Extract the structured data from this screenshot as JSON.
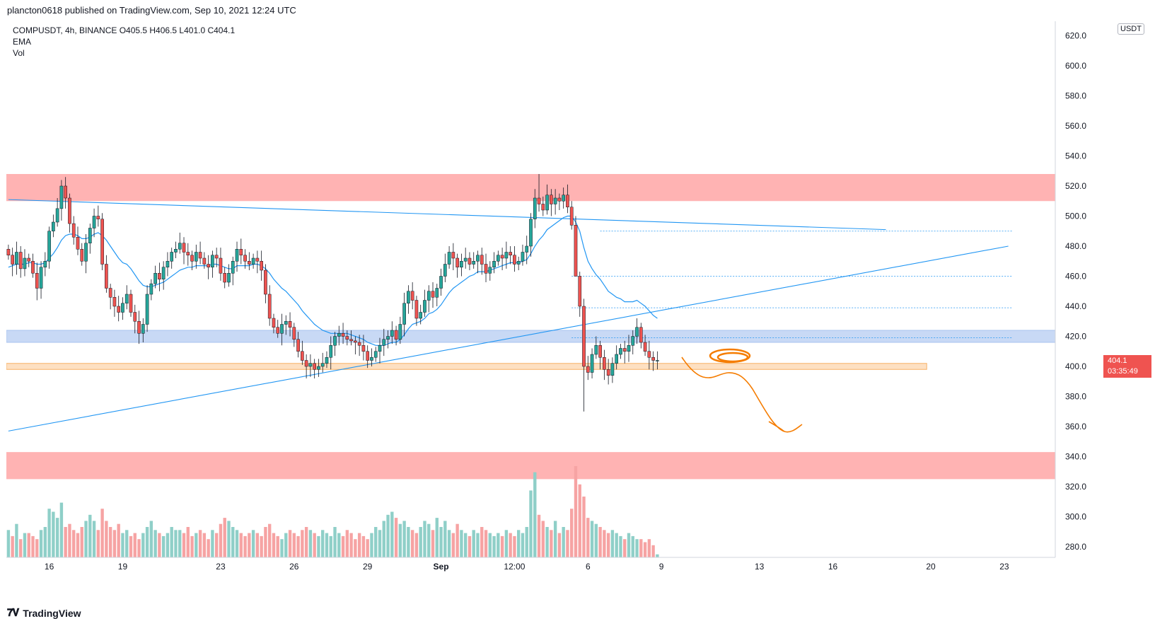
{
  "header": {
    "published": "plancton0618 published on TradingView.com, Sep 10, 2021 12:24 UTC"
  },
  "legend": {
    "symbol_line": "COMPUSDT, 4h, BINANCE  O405.5  H406.5  L401.0  C404.1",
    "ema": "EMA",
    "vol": "Vol"
  },
  "price_axis": {
    "currency": "USDT",
    "current_price": "404.1",
    "countdown": "03:35:49",
    "ticks": [
      "620.0",
      "600.0",
      "580.0",
      "560.0",
      "540.0",
      "520.0",
      "500.0",
      "480.0",
      "460.0",
      "440.0",
      "420.0",
      "400.0",
      "380.0",
      "360.0",
      "340.0",
      "320.0",
      "300.0",
      "280.0"
    ]
  },
  "footer": {
    "brand": "TradingView",
    "logo_icon": "tradingview-logo-icon"
  },
  "colors": {
    "up": "#26a69a",
    "down": "#ef5350",
    "ema": "#2196f3",
    "red_zone": "#ffb3b3",
    "blue_zone": "#c8d9f5",
    "orange_zone": "#fde0c2",
    "drawing_orange": "#f57c00",
    "trendline": "#2196f3",
    "vol_up": "#8fcfc8",
    "vol_down": "#f6a3a3"
  },
  "chart_data": {
    "type": "candlestick",
    "symbol": "COMPUSDT",
    "interval": "4h",
    "exchange": "BINANCE",
    "ylim": [
      266,
      630
    ],
    "x_ticks": [
      {
        "label": "16",
        "i": 10
      },
      {
        "label": "19",
        "i": 28
      },
      {
        "label": "23",
        "i": 52
      },
      {
        "label": "26",
        "i": 70
      },
      {
        "label": "29",
        "i": 88
      },
      {
        "label": "Sep",
        "i": 106
      },
      {
        "label": "12:00",
        "i": 124
      },
      {
        "label": "6",
        "i": 142
      },
      {
        "label": "9",
        "i": 160
      },
      {
        "label": "13",
        "i": 184
      },
      {
        "label": "16",
        "i": 202
      },
      {
        "label": "20",
        "i": 226
      },
      {
        "label": "23",
        "i": 244
      }
    ],
    "total_slots": 257,
    "zones": [
      {
        "name": "resistance-zone-top",
        "from": 510,
        "to": 528,
        "color": "red"
      },
      {
        "name": "support-zone-blue",
        "from": 416,
        "to": 424,
        "color": "blue"
      },
      {
        "name": "support-zone-orange",
        "from": 398,
        "to": 402,
        "color": "orange",
        "end_i": 225
      },
      {
        "name": "target-zone-bottom",
        "from": 325,
        "to": 343,
        "color": "red"
      }
    ],
    "trendlines": [
      {
        "name": "descending-trendline",
        "p1": {
          "i": 0,
          "v": 511
        },
        "p2": {
          "i": 215,
          "v": 491
        }
      },
      {
        "name": "ascending-trendline",
        "p1": {
          "i": 0,
          "v": 357
        },
        "p2": {
          "i": 245,
          "v": 480
        }
      }
    ],
    "dotted_levels": [
      {
        "v": 490,
        "from_i": 145,
        "to_i": 246
      },
      {
        "v": 460,
        "from_i": 138,
        "to_i": 246
      },
      {
        "v": 439,
        "from_i": 138,
        "to_i": 246
      },
      {
        "v": 419,
        "from_i": 138,
        "to_i": 246
      }
    ],
    "closes": [
      474,
      468,
      476,
      465,
      472,
      470,
      462,
      452,
      466,
      470,
      490,
      496,
      505,
      520,
      512,
      495,
      486,
      478,
      470,
      482,
      492,
      500,
      498,
      468,
      452,
      446,
      440,
      436,
      442,
      448,
      436,
      430,
      422,
      428,
      448,
      455,
      462,
      458,
      466,
      470,
      476,
      478,
      482,
      476,
      474,
      470,
      476,
      472,
      468,
      466,
      474,
      472,
      462,
      456,
      462,
      470,
      478,
      474,
      470,
      468,
      472,
      470,
      464,
      448,
      432,
      426,
      422,
      428,
      430,
      426,
      418,
      410,
      404,
      400,
      402,
      398,
      400,
      402,
      406,
      414,
      420,
      422,
      420,
      418,
      417,
      416,
      414,
      410,
      404,
      406,
      410,
      414,
      418,
      420,
      424,
      418,
      428,
      442,
      450,
      444,
      432,
      436,
      444,
      450,
      446,
      452,
      460,
      468,
      476,
      472,
      466,
      470,
      472,
      468,
      470,
      474,
      468,
      462,
      466,
      470,
      474,
      472,
      476,
      474,
      468,
      470,
      476,
      480,
      498,
      512,
      508,
      504,
      514,
      508,
      512,
      510,
      514,
      506,
      494,
      460,
      440,
      400,
      396,
      408,
      414,
      406,
      398,
      394,
      402,
      408,
      412,
      410,
      414,
      420,
      426,
      416,
      410,
      406,
      404,
      404
    ],
    "volumes": [
      9,
      7,
      11,
      6,
      8,
      8,
      7,
      6,
      9,
      10,
      16,
      15,
      13,
      18,
      10,
      11,
      9,
      8,
      10,
      12,
      14,
      12,
      9,
      16,
      12,
      10,
      9,
      11,
      8,
      9,
      7,
      8,
      6,
      8,
      10,
      12,
      9,
      8,
      7,
      8,
      10,
      9,
      9,
      8,
      10,
      7,
      8,
      9,
      8,
      6,
      9,
      8,
      11,
      13,
      12,
      10,
      9,
      8,
      7,
      8,
      9,
      8,
      7,
      10,
      11,
      8,
      7,
      6,
      8,
      9,
      8,
      7,
      9,
      10,
      9,
      8,
      7,
      9,
      8,
      7,
      10,
      8,
      7,
      9,
      8,
      6,
      8,
      7,
      6,
      8,
      10,
      9,
      12,
      14,
      15,
      13,
      11,
      12,
      10,
      9,
      8,
      10,
      12,
      11,
      9,
      13,
      10,
      12,
      9,
      8,
      11,
      9,
      8,
      7,
      9,
      8,
      10,
      9,
      8,
      7,
      8,
      7,
      9,
      8,
      7,
      9,
      8,
      10,
      22,
      28,
      14,
      12,
      10,
      9,
      12,
      8,
      10,
      9,
      16,
      30,
      24,
      20,
      13,
      12,
      11,
      10,
      9,
      8,
      9,
      8,
      7,
      6,
      8,
      7,
      6,
      6,
      5,
      6,
      4,
      1
    ],
    "ema": [
      466,
      467,
      468,
      468,
      468,
      469,
      469,
      468,
      468,
      469,
      472,
      475,
      479,
      484,
      487,
      488,
      488,
      487,
      485,
      485,
      486,
      488,
      489,
      487,
      484,
      480,
      476,
      472,
      469,
      468,
      465,
      461,
      457,
      454,
      453,
      453,
      454,
      455,
      456,
      458,
      460,
      462,
      464,
      465,
      466,
      466,
      467,
      467,
      467,
      467,
      468,
      468,
      467,
      466,
      465,
      465,
      467,
      467,
      467,
      467,
      468,
      468,
      467,
      465,
      462,
      458,
      455,
      452,
      450,
      447,
      444,
      441,
      437,
      434,
      431,
      428,
      426,
      424,
      423,
      422,
      422,
      422,
      422,
      422,
      421,
      420,
      419,
      418,
      416,
      415,
      414,
      414,
      414,
      415,
      416,
      416,
      418,
      421,
      425,
      428,
      429,
      430,
      432,
      435,
      436,
      438,
      441,
      445,
      449,
      452,
      454,
      456,
      458,
      460,
      461,
      463,
      463,
      463,
      464,
      465,
      466,
      467,
      468,
      469,
      469,
      469,
      470,
      471,
      475,
      480,
      484,
      487,
      491,
      493,
      495,
      497,
      499,
      500,
      500,
      496,
      490,
      479,
      470,
      465,
      461,
      458,
      454,
      450,
      448,
      446,
      445,
      443,
      443,
      443,
      444,
      442,
      440,
      437,
      434,
      432
    ],
    "drawings": [
      {
        "name": "projection-path",
        "type": "freehand-arrow",
        "color": "orange"
      },
      {
        "name": "scribble-circle",
        "type": "scribble",
        "color": "orange"
      }
    ]
  }
}
